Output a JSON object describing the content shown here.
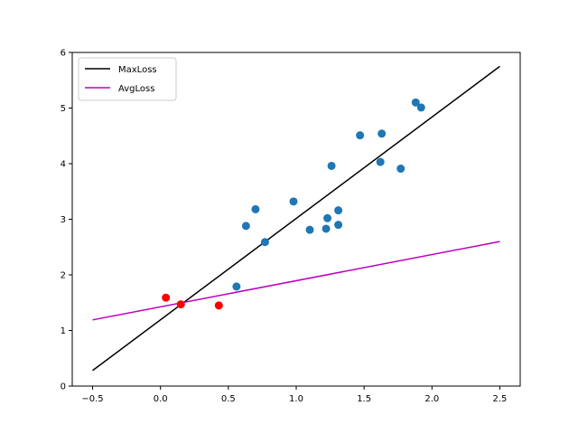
{
  "chart_data": {
    "type": "scatter",
    "title": "",
    "xlabel": "",
    "ylabel": "",
    "xlim": [
      -0.65,
      2.65
    ],
    "ylim": [
      0,
      6
    ],
    "x_ticks": [
      -0.5,
      0.0,
      0.5,
      1.0,
      1.5,
      2.0,
      2.5
    ],
    "y_ticks": [
      0,
      1,
      2,
      3,
      4,
      5,
      6
    ],
    "grid": false,
    "legend_position": "top-left",
    "points": [
      {
        "x": 0.56,
        "y": 1.79
      },
      {
        "x": 0.63,
        "y": 2.88
      },
      {
        "x": 0.7,
        "y": 3.18
      },
      {
        "x": 0.77,
        "y": 2.59
      },
      {
        "x": 0.98,
        "y": 3.32
      },
      {
        "x": 1.1,
        "y": 2.81
      },
      {
        "x": 1.22,
        "y": 2.83
      },
      {
        "x": 1.23,
        "y": 3.02
      },
      {
        "x": 1.26,
        "y": 3.96
      },
      {
        "x": 1.31,
        "y": 3.16
      },
      {
        "x": 1.31,
        "y": 2.9
      },
      {
        "x": 1.47,
        "y": 4.51
      },
      {
        "x": 1.62,
        "y": 4.03
      },
      {
        "x": 1.63,
        "y": 4.54
      },
      {
        "x": 1.77,
        "y": 3.91
      },
      {
        "x": 1.88,
        "y": 5.1
      },
      {
        "x": 1.92,
        "y": 5.01
      }
    ],
    "points_color": "#1f77b4",
    "outliers": [
      {
        "x": 0.04,
        "y": 1.59
      },
      {
        "x": 0.15,
        "y": 1.47
      },
      {
        "x": 0.43,
        "y": 1.45
      }
    ],
    "outliers_color": "#ff0000",
    "series": [
      {
        "name": "MaxLoss",
        "color": "#000000",
        "x": [
          -0.5,
          2.5
        ],
        "y": [
          0.28,
          5.75
        ]
      },
      {
        "name": "AvgLoss",
        "color": "#bf00bf",
        "x": [
          -0.5,
          2.5
        ],
        "y": [
          1.19,
          2.6
        ]
      }
    ]
  }
}
